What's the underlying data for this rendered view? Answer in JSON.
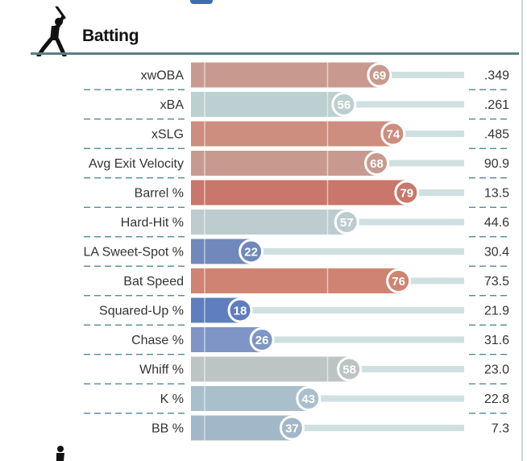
{
  "section": {
    "title": "Batting"
  },
  "icons": {
    "header": "batter-silhouette-icon",
    "footer": "pitcher-silhouette-icon"
  },
  "colors": {
    "header_rule": "#5a7f86",
    "track": "#cfe0e1",
    "label": "#333333",
    "divider": "#3f7f86"
  },
  "chart_data": {
    "type": "bar",
    "orientation": "horizontal",
    "value_range": [
      0,
      100
    ],
    "rows": [
      {
        "label": "xwOBA",
        "percentile": 69,
        "value": ".349",
        "color": "#c89a8f"
      },
      {
        "label": "xBA",
        "percentile": 56,
        "value": ".261",
        "color": "#bccfd1"
      },
      {
        "label": "xSLG",
        "percentile": 74,
        "value": ".485",
        "color": "#cd8d7f"
      },
      {
        "label": "Avg Exit Velocity",
        "percentile": 68,
        "value": "90.9",
        "color": "#c89a8f"
      },
      {
        "label": "Barrel %",
        "percentile": 79,
        "value": "13.5",
        "color": "#c8776a"
      },
      {
        "label": "Hard-Hit %",
        "percentile": 57,
        "value": "44.6",
        "color": "#bccccf"
      },
      {
        "label": "LA Sweet-Spot %",
        "percentile": 22,
        "value": "30.4",
        "color": "#7088bc"
      },
      {
        "label": "Bat Speed",
        "percentile": 76,
        "value": "73.5",
        "color": "#cf8473"
      },
      {
        "label": "Squared-Up %",
        "percentile": 18,
        "value": "21.9",
        "color": "#5f7ebf"
      },
      {
        "label": "Chase %",
        "percentile": 26,
        "value": "31.6",
        "color": "#7f95c5"
      },
      {
        "label": "Whiff %",
        "percentile": 58,
        "value": "23.0",
        "color": "#bcc4c4"
      },
      {
        "label": "K %",
        "percentile": 43,
        "value": "22.8",
        "color": "#a9c0cc"
      },
      {
        "label": "BB %",
        "percentile": 37,
        "value": "7.3",
        "color": "#a2b7c8"
      }
    ]
  }
}
